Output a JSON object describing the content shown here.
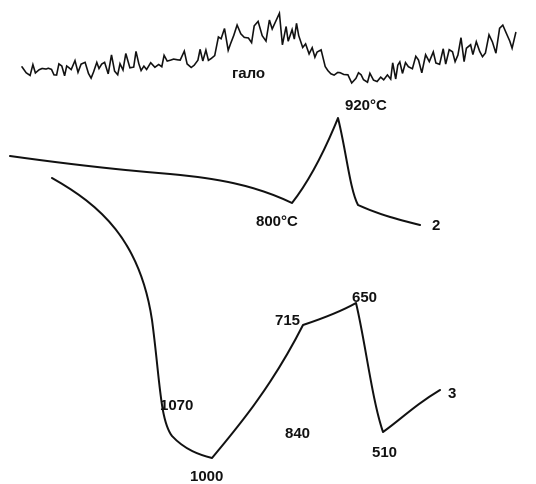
{
  "chart_data": {
    "type": "line",
    "series": [
      {
        "annotations": [
          {
            "text": "гало"
          },
          {
            "text": "920°C"
          }
        ]
      },
      {
        "name": "2",
        "annotations": [
          {
            "text": "800°C"
          }
        ]
      },
      {
        "name": "3",
        "annotations": [
          {
            "text": "1070"
          },
          {
            "text": "1000"
          },
          {
            "text": "840"
          },
          {
            "text": "715"
          },
          {
            "text": "650"
          },
          {
            "text": "510"
          }
        ]
      }
    ]
  }
}
